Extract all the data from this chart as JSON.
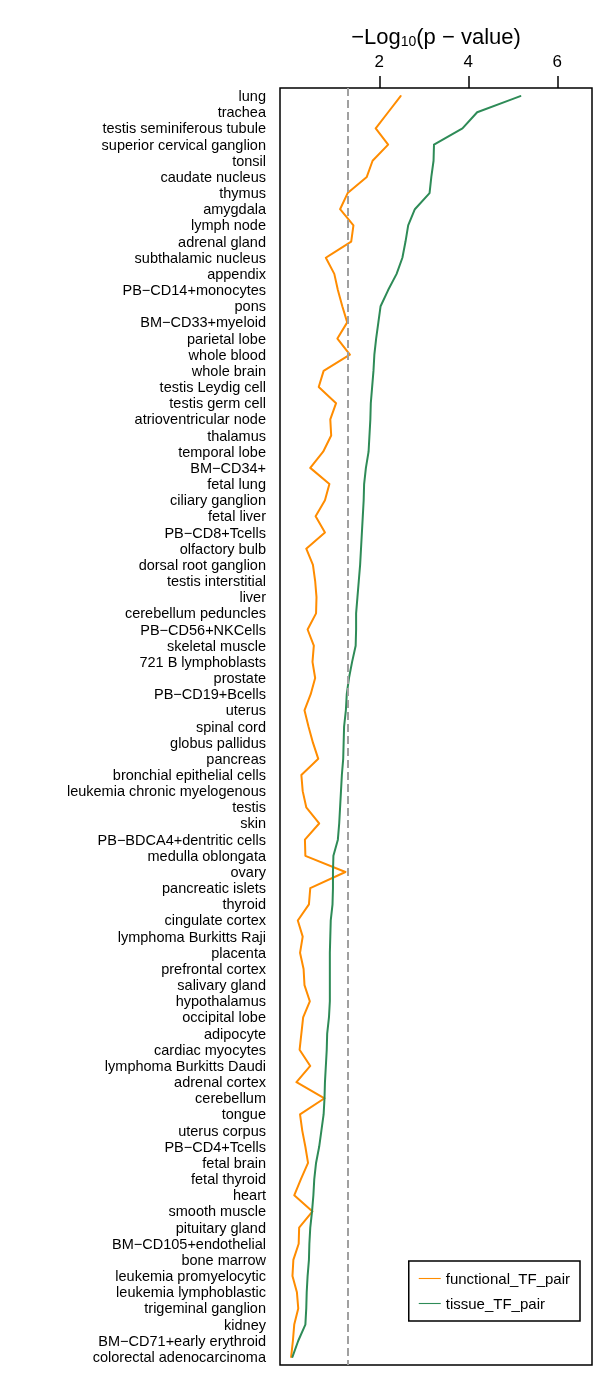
{
  "chart_data": {
    "type": "line",
    "orientation": "horizontal",
    "xlabel": "−Log$_{10}$(p − value)",
    "categories": [
      "lung",
      "trachea",
      "testis seminiferous tubule",
      "superior cervical ganglion",
      "tonsil",
      "caudate nucleus",
      "thymus",
      "amygdala",
      "lymph node",
      "adrenal gland",
      "subthalamic nucleus",
      "appendix",
      "PB−CD14+monocytes",
      "pons",
      "BM−CD33+myeloid",
      "parietal lobe",
      "whole blood",
      "whole brain",
      "testis Leydig cell",
      "testis germ cell",
      "atrioventricular node",
      "thalamus",
      "temporal lobe",
      "BM−CD34+",
      "fetal lung",
      "ciliary ganglion",
      "fetal liver",
      "PB−CD8+Tcells",
      "olfactory bulb",
      "dorsal root ganglion",
      "testis interstitial",
      "liver",
      "cerebellum peduncles",
      "PB−CD56+NKCells",
      "skeletal muscle",
      "721 B lymphoblasts",
      "prostate",
      "PB−CD19+Bcells",
      "uterus",
      "spinal cord",
      "globus pallidus",
      "pancreas",
      "bronchial epithelial cells",
      "leukemia chronic myelogenous",
      "testis",
      "skin",
      "PB−BDCA4+dentritic cells",
      "medulla oblongata",
      "ovary",
      "pancreatic islets",
      "thyroid",
      "cingulate cortex",
      "lymphoma Burkitts Raji",
      "placenta",
      "prefrontal cortex",
      "salivary gland",
      "hypothalamus",
      "occipital lobe",
      "adipocyte",
      "cardiac myocytes",
      "lymphoma Burkitts Daudi",
      "adrenal cortex",
      "cerebellum",
      "tongue",
      "uterus corpus",
      "PB−CD4+Tcells",
      "fetal brain",
      "fetal thyroid",
      "heart",
      "smooth muscle",
      "pituitary gland",
      "BM−CD105+endothelial",
      "bone marrow",
      "leukemia promyelocytic",
      "leukemia lymphoblastic",
      "trigeminal ganglion",
      "kidney",
      "BM−CD71+early erythroid",
      "colorectal adenocarcinoma"
    ],
    "series": [
      {
        "name": "functional_TF_pair",
        "color": "#ff8c00",
        "values": [
          2.48,
          2.2,
          1.92,
          2.2,
          1.85,
          1.72,
          1.29,
          1.12,
          1.42,
          1.37,
          0.8,
          0.99,
          1.07,
          1.17,
          1.28,
          1.06,
          1.34,
          0.75,
          0.64,
          1.03,
          0.9,
          0.92,
          0.74,
          0.45,
          0.88,
          0.78,
          0.57,
          0.78,
          0.36,
          0.51,
          0.56,
          0.59,
          0.58,
          0.39,
          0.53,
          0.5,
          0.56,
          0.46,
          0.32,
          0.41,
          0.51,
          0.63,
          0.25,
          0.28,
          0.36,
          0.65,
          0.33,
          0.34,
          1.24,
          0.45,
          0.42,
          0.17,
          0.28,
          0.22,
          0.3,
          0.32,
          0.44,
          0.29,
          0.25,
          0.21,
          0.45,
          0.14,
          0.77,
          0.22,
          0.27,
          0.34,
          0.4,
          0.24,
          0.09,
          0.5,
          0.2,
          0.19,
          0.07,
          0.05,
          0.15,
          0.18,
          0.09,
          0.06,
          0.02
        ]
      },
      {
        "name": "tissue_TF_pair",
        "color": "#2e8b57",
        "values": [
          5.17,
          4.2,
          3.87,
          3.23,
          3.22,
          3.17,
          3.13,
          2.8,
          2.65,
          2.59,
          2.52,
          2.39,
          2.2,
          2.03,
          1.98,
          1.93,
          1.89,
          1.87,
          1.84,
          1.81,
          1.8,
          1.78,
          1.76,
          1.7,
          1.66,
          1.65,
          1.63,
          1.61,
          1.59,
          1.57,
          1.54,
          1.51,
          1.48,
          1.48,
          1.47,
          1.39,
          1.32,
          1.27,
          1.25,
          1.21,
          1.2,
          1.19,
          1.16,
          1.14,
          1.12,
          1.1,
          1.07,
          0.97,
          0.96,
          0.96,
          0.95,
          0.91,
          0.9,
          0.89,
          0.89,
          0.89,
          0.89,
          0.87,
          0.83,
          0.82,
          0.8,
          0.78,
          0.77,
          0.75,
          0.7,
          0.65,
          0.58,
          0.54,
          0.52,
          0.49,
          0.45,
          0.43,
          0.42,
          0.39,
          0.37,
          0.36,
          0.34,
          0.18,
          0.05
        ]
      }
    ],
    "xlim": [
      -0.23,
      6.78
    ],
    "xticks": [
      2,
      4,
      6
    ],
    "ref_lines": [
      {
        "axis": "x",
        "value": 1.3,
        "color": "#a0a0a0",
        "line_style": "dashed"
      }
    ],
    "grid": false,
    "legend": "bottom right",
    "marker": "none",
    "line_style": "solid"
  }
}
